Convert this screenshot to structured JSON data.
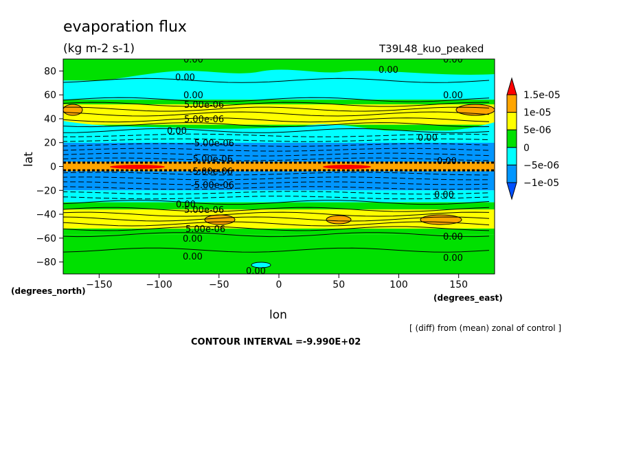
{
  "chart_data": {
    "type": "heatmap",
    "title": "evaporation flux",
    "subtitle": "(kg m-2 s-1)",
    "run_label": "T39L48_kuo_peaked",
    "xlabel": "lon",
    "ylabel": "lat",
    "x_units": "(degrees_east)",
    "y_units": "(degrees_north)",
    "xlim": [
      -180,
      180
    ],
    "ylim": [
      -90,
      90
    ],
    "x_ticks": [
      -150,
      -100,
      -50,
      0,
      50,
      100,
      150
    ],
    "y_ticks": [
      80,
      60,
      40,
      20,
      0,
      -20,
      -40,
      -60,
      -80
    ],
    "note": "[ (diff) from (mean) zonal of control ]",
    "contour_interval": "CONTOUR INTERVAL =-9.990E+02",
    "colorbar": {
      "labels": [
        "1.5e-05",
        "1e-05",
        "5e-06",
        "0",
        "-5e-06",
        "-1e-05"
      ],
      "colors": [
        "#ff0000",
        "#ffa500",
        "#ffff00",
        "#00e000",
        "#00ffff",
        "#0096ff",
        "#0050ff"
      ]
    },
    "bands": [
      {
        "lat": [
          72,
          90
        ],
        "level": "0 to 5e-06"
      },
      {
        "lat": [
          56,
          72
        ],
        "level": "-5e-06 to 0"
      },
      {
        "lat": [
          52,
          56
        ],
        "level": "0 to 5e-06"
      },
      {
        "lat": [
          35,
          52
        ],
        "level": "5e-06 to 1e-05"
      },
      {
        "lat": [
          30,
          35
        ],
        "level": "0 to 5e-06"
      },
      {
        "lat": [
          20,
          30
        ],
        "level": "-5e-06 to 0"
      },
      {
        "lat": [
          4,
          20
        ],
        "level": "-1e-05 to -5e-06"
      },
      {
        "lat": [
          -4,
          4
        ],
        "level": "1e-05 to 1.5e-05"
      },
      {
        "lat": [
          -20,
          -4
        ],
        "level": "-1e-05 to -5e-06"
      },
      {
        "lat": [
          -30,
          -20
        ],
        "level": "-5e-06 to 0"
      },
      {
        "lat": [
          -36,
          -30
        ],
        "level": "0 to 5e-06"
      },
      {
        "lat": [
          -52,
          -36
        ],
        "level": "5e-06 to 1e-05"
      },
      {
        "lat": [
          -57,
          -52
        ],
        "level": "0 to 5e-06"
      },
      {
        "lat": [
          -90,
          -57
        ],
        "level": "0 to 5e-06"
      }
    ],
    "contour_labels": [
      "0.00",
      "5.00e-06",
      "-5.00e-06"
    ]
  }
}
